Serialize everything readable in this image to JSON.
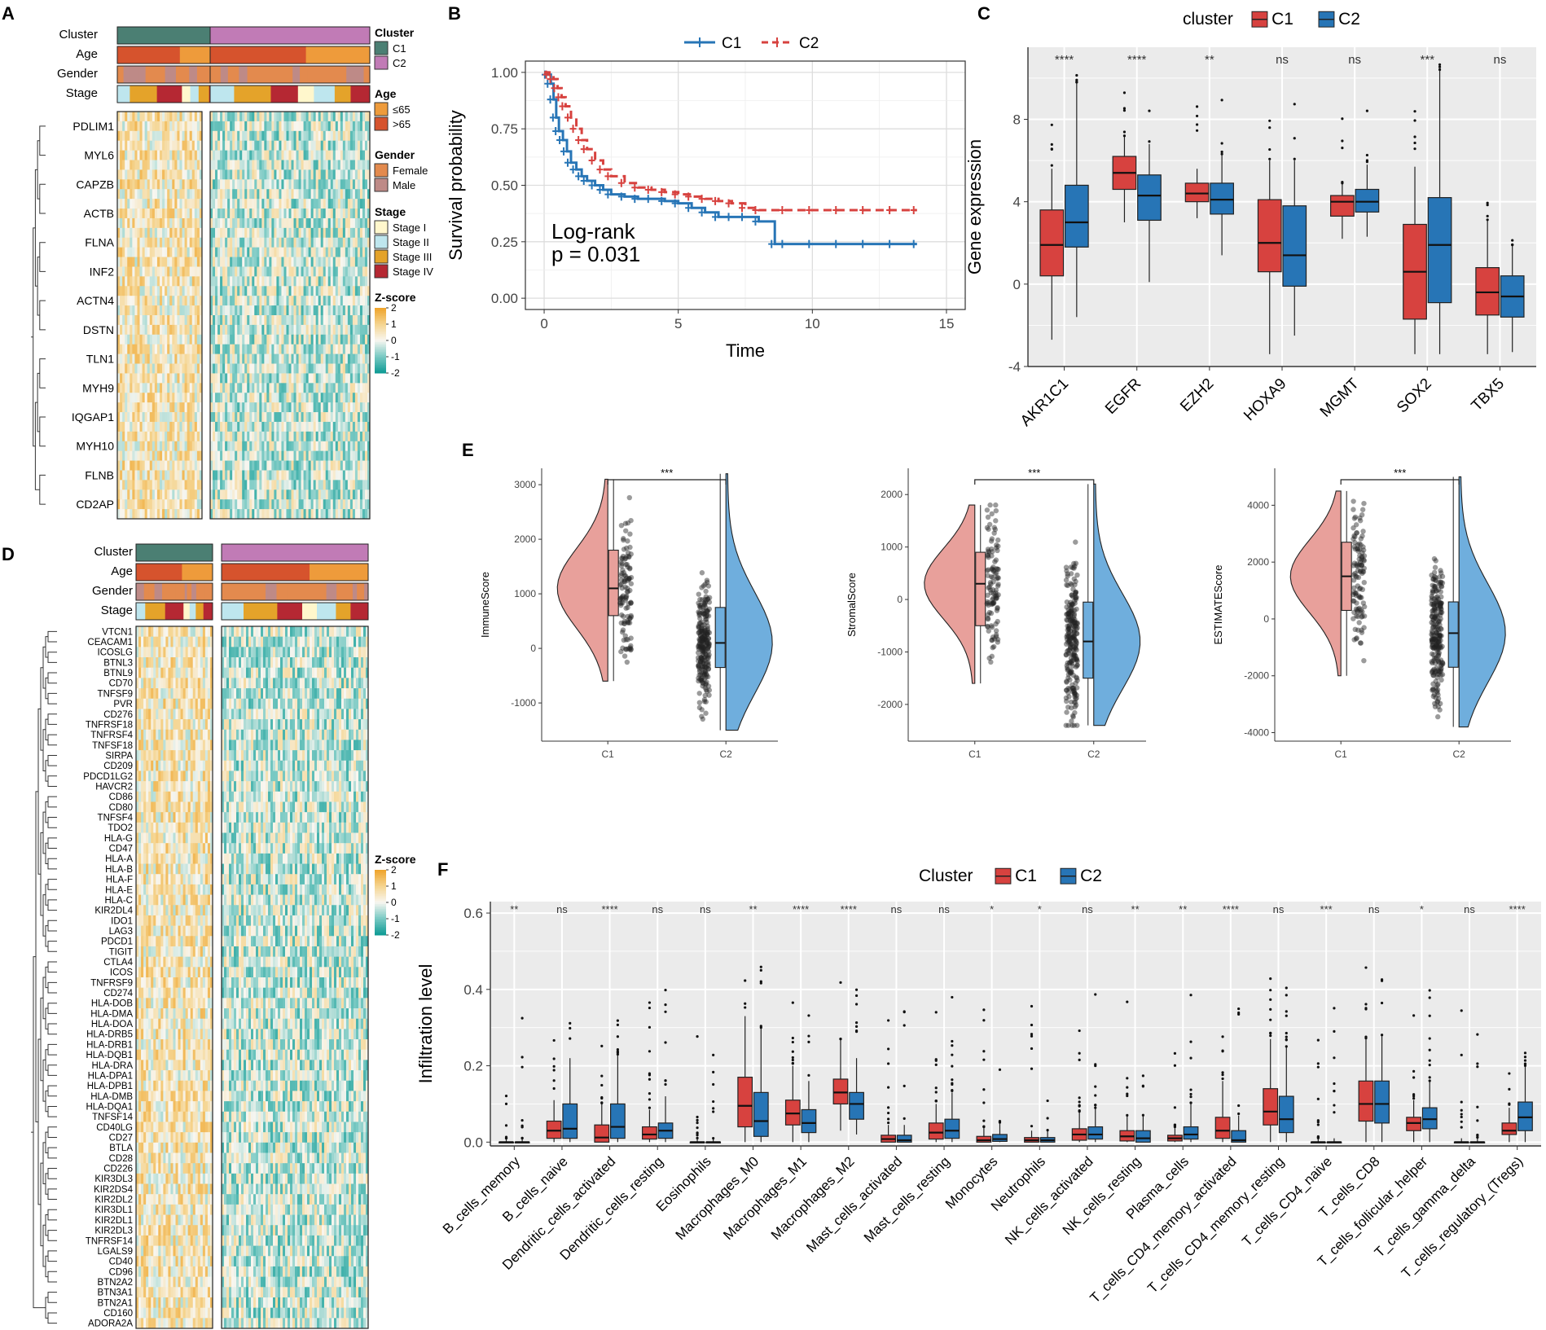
{
  "figure": {
    "panel_letters": [
      "A",
      "B",
      "C",
      "D",
      "E",
      "F"
    ],
    "colors": {
      "c1": "#D7423F",
      "c2": "#2775B6",
      "c1_light": "#E8A09B",
      "c2_light": "#6FAEDD",
      "cluster_c1": "#4B7F73",
      "cluster_c2": "#C17BB6",
      "age_le65": "#EE9B3B",
      "age_gt65": "#D6532D",
      "female": "#E38A4E",
      "male": "#BE8A87",
      "stage_i": "#FFF7CC",
      "stage_ii": "#BEE6EE",
      "stage_iii": "#E4A32A",
      "stage_iv": "#B52833",
      "panel_bg": "#EBEBEB",
      "grid": "#FFFFFF"
    }
  },
  "heatmap_a": {
    "annotation_rows": [
      "Cluster",
      "Age",
      "Gender",
      "Stage"
    ],
    "genes": [
      "PDLIM1",
      "MYL6",
      "CAPZB",
      "ACTB",
      "FLNA",
      "INF2",
      "ACTN4",
      "DSTN",
      "TLN1",
      "MYH9",
      "IQGAP1",
      "MYH10",
      "FLNB",
      "CD2AP"
    ]
  },
  "heatmap_d": {
    "annotation_rows": [
      "Cluster",
      "Age",
      "Gender",
      "Stage"
    ],
    "genes": [
      "VTCN1",
      "CEACAM1",
      "ICOSLG",
      "BTNL3",
      "BTNL9",
      "CD70",
      "TNFSF9",
      "PVR",
      "CD276",
      "TNFRSF18",
      "TNFRSF4",
      "TNFSF18",
      "SIRPA",
      "CD209",
      "PDCD1LG2",
      "HAVCR2",
      "CD86",
      "CD80",
      "TNFSF4",
      "TDO2",
      "HLA-G",
      "CD47",
      "HLA-A",
      "HLA-B",
      "HLA-F",
      "HLA-E",
      "HLA-C",
      "KIR2DL4",
      "IDO1",
      "LAG3",
      "PDCD1",
      "TIGIT",
      "CTLA4",
      "ICOS",
      "TNFRSF9",
      "CD274",
      "HLA-DOB",
      "HLA-DMA",
      "HLA-DOA",
      "HLA-DRB5",
      "HLA-DRB1",
      "HLA-DQB1",
      "HLA-DRA",
      "HLA-DPA1",
      "HLA-DPB1",
      "HLA-DMB",
      "HLA-DQA1",
      "TNFSF14",
      "CD40LG",
      "CD27",
      "BTLA",
      "CD28",
      "CD226",
      "KIR3DL3",
      "KIR2DS4",
      "KIR2DL2",
      "KIR3DL1",
      "KIR2DL1",
      "KIR2DL3",
      "TNFRSF14",
      "LGALS9",
      "CD40",
      "CD96",
      "BTN2A2",
      "BTN3A1",
      "BTN2A1",
      "CD160",
      "ADORA2A"
    ]
  },
  "legend": {
    "cluster_title": "Cluster",
    "cluster_items": [
      "C1",
      "C2"
    ],
    "age_title": "Age",
    "age_items": [
      "≤65",
      ">65"
    ],
    "gender_title": "Gender",
    "gender_items": [
      "Female",
      "Male"
    ],
    "stage_title": "Stage",
    "stage_items": [
      "Stage I",
      "Stage II",
      "Stage III",
      "Stage IV"
    ],
    "zscore_title": "Z-score",
    "zscore_ticks": [
      "2",
      "1",
      "0",
      "-1",
      "-2"
    ]
  },
  "chart_data": [
    {
      "id": "B",
      "type": "line",
      "xlabel": "Time",
      "ylabel": "Survival probability",
      "xlim": [
        -0.7,
        15.7
      ],
      "ylim": [
        -0.05,
        1.05
      ],
      "xticks": [
        "0",
        "5",
        "10",
        "15"
      ],
      "yticks": [
        "0.00",
        "0.25",
        "0.50",
        "0.75",
        "1.00"
      ],
      "annotation": [
        "Log-rank",
        "p = 0.031"
      ],
      "series": [
        {
          "name": "C1",
          "line": "solid",
          "x": [
            0,
            0.15,
            0.25,
            0.35,
            0.45,
            0.55,
            0.7,
            0.85,
            1.0,
            1.2,
            1.4,
            1.6,
            1.9,
            2.2,
            2.5,
            3.0,
            3.5,
            4.0,
            4.5,
            5.0,
            5.5,
            6.0,
            6.5,
            7.0,
            7.5,
            8.0,
            8.6,
            9.0,
            10.0,
            11.0,
            12.0,
            13.0,
            13.9
          ],
          "y": [
            1.0,
            0.99,
            0.95,
            0.88,
            0.8,
            0.74,
            0.7,
            0.65,
            0.6,
            0.57,
            0.54,
            0.52,
            0.5,
            0.48,
            0.46,
            0.45,
            0.44,
            0.44,
            0.43,
            0.42,
            0.4,
            0.38,
            0.36,
            0.36,
            0.36,
            0.34,
            0.24,
            0.24,
            0.24,
            0.24,
            0.24,
            0.24,
            0.24
          ]
        },
        {
          "name": "C2",
          "line": "dashed",
          "x": [
            0,
            0.2,
            0.35,
            0.5,
            0.65,
            0.8,
            1.0,
            1.2,
            1.4,
            1.6,
            1.9,
            2.2,
            2.5,
            3.0,
            3.5,
            4.0,
            4.5,
            5.0,
            5.5,
            6.0,
            6.5,
            7.0,
            7.5,
            8.0,
            9.0,
            10.0,
            11.0,
            12.0,
            13.0,
            13.9
          ],
          "y": [
            1.0,
            0.99,
            0.97,
            0.93,
            0.89,
            0.85,
            0.8,
            0.75,
            0.7,
            0.66,
            0.61,
            0.57,
            0.54,
            0.51,
            0.49,
            0.48,
            0.47,
            0.46,
            0.45,
            0.44,
            0.43,
            0.42,
            0.4,
            0.39,
            0.39,
            0.39,
            0.39,
            0.39,
            0.39,
            0.39
          ]
        }
      ]
    },
    {
      "id": "C",
      "type": "box",
      "xlabel": "",
      "ylabel": "Gene expression",
      "legend_title": "cluster",
      "legend_items": [
        "C1",
        "C2"
      ],
      "ylim": [
        -4,
        11.5
      ],
      "yticks": [
        "-4",
        "0",
        "4",
        "8"
      ],
      "categories": [
        "AKR1C1",
        "EGFR",
        "EZH2",
        "HOXA9",
        "MGMT",
        "SOX2",
        "TBX5"
      ],
      "significance": [
        "****",
        "****",
        "**",
        "ns",
        "ns",
        "***",
        "ns"
      ],
      "series": [
        {
          "name": "C1",
          "boxes": [
            [
              -2.7,
              0.4,
              1.9,
              3.6,
              5.6
            ],
            [
              3.0,
              4.6,
              5.4,
              6.2,
              7.2
            ],
            [
              3.2,
              4.0,
              4.4,
              4.9,
              5.6
            ],
            [
              -3.4,
              0.6,
              2.0,
              4.1,
              6.0
            ],
            [
              2.2,
              3.3,
              4.0,
              4.3,
              4.9
            ],
            [
              -3.4,
              -1.7,
              0.6,
              2.9,
              5.7
            ],
            [
              -3.4,
              -1.5,
              -0.4,
              0.8,
              3.1
            ]
          ]
        },
        {
          "name": "C2",
          "boxes": [
            [
              -1.6,
              1.8,
              3.0,
              4.8,
              9.8
            ],
            [
              0.1,
              3.1,
              4.3,
              5.3,
              6.8
            ],
            [
              1.4,
              3.4,
              4.1,
              4.9,
              6.3
            ],
            [
              -2.5,
              -0.1,
              1.4,
              3.8,
              6.0
            ],
            [
              2.3,
              3.5,
              4.0,
              4.6,
              5.8
            ],
            [
              -3.4,
              -0.9,
              1.9,
              4.2,
              10.4
            ],
            [
              -3.3,
              -1.6,
              -0.6,
              0.4,
              1.9
            ]
          ]
        }
      ]
    },
    {
      "id": "E1",
      "type": "violin",
      "ylabel": "ImmuneScore",
      "categories": [
        "C1",
        "C2"
      ],
      "ylim": [
        -1700,
        3300
      ],
      "yticks": [
        "-1000",
        "0",
        "1000",
        "2000",
        "3000"
      ],
      "significance": "***",
      "boxes": [
        [
          -600,
          600,
          1100,
          1800,
          3100
        ],
        [
          -1500,
          -350,
          100,
          750,
          3200
        ]
      ]
    },
    {
      "id": "E2",
      "type": "violin",
      "ylabel": "StromalScore",
      "categories": [
        "C1",
        "C2"
      ],
      "ylim": [
        -2700,
        2500
      ],
      "yticks": [
        "-2000",
        "-1000",
        "0",
        "1000",
        "2000"
      ],
      "significance": "***",
      "boxes": [
        [
          -1600,
          -500,
          300,
          900,
          1800
        ],
        [
          -2400,
          -1500,
          -800,
          -50,
          2200
        ]
      ]
    },
    {
      "id": "E3",
      "type": "violin",
      "ylabel": "ESTIMATEScore",
      "categories": [
        "C1",
        "C2"
      ],
      "ylim": [
        -4300,
        5300
      ],
      "yticks": [
        "-4000",
        "-2000",
        "0",
        "2000",
        "4000"
      ],
      "significance": "***",
      "boxes": [
        [
          -2000,
          300,
          1500,
          2700,
          4500
        ],
        [
          -3800,
          -1700,
          -500,
          600,
          5000
        ]
      ]
    },
    {
      "id": "F",
      "type": "box",
      "xlabel": "",
      "ylabel": "Infiltration level",
      "legend_title": "Cluster",
      "legend_items": [
        "C1",
        "C2"
      ],
      "ylim": [
        -0.01,
        0.63
      ],
      "yticks": [
        "0.0",
        "0.2",
        "0.4",
        "0.6"
      ],
      "categories": [
        "B_cells_memory",
        "B_cells_naive",
        "Dendritic_cells_activated",
        "Dendritic_cells_resting",
        "Eosinophils",
        "Macrophages_M0",
        "Macrophages_M1",
        "Macrophages_M2",
        "Mast_cells_activated",
        "Mast_cells_resting",
        "Monocytes",
        "Neutrophils",
        "NK_cells_activated",
        "NK_cells_resting",
        "Plasma_cells",
        "T_cells_CD4_memory_activated",
        "T_cells_CD4_memory_resting",
        "T_cells_CD4_naive",
        "T_cells_CD8",
        "T_cells_follicular_helper",
        "T_cells_gamma_delta",
        "T_cells_regulatory_(Tregs)"
      ],
      "significance": [
        "**",
        "ns",
        "****",
        "ns",
        "ns",
        "**",
        "****",
        "****",
        "ns",
        "ns",
        "*",
        "*",
        "ns",
        "**",
        "**",
        "****",
        "ns",
        "***",
        "ns",
        "*",
        "ns",
        "****"
      ],
      "series": [
        {
          "name": "C1",
          "boxes": [
            [
              0,
              0,
              0,
              0,
              0.01
            ],
            [
              0,
              0.01,
              0.03,
              0.055,
              0.11
            ],
            [
              0,
              0,
              0.012,
              0.045,
              0.1
            ],
            [
              0,
              0.008,
              0.02,
              0.04,
              0.085
            ],
            [
              0,
              0,
              0,
              0,
              0.01
            ],
            [
              0,
              0.04,
              0.095,
              0.17,
              0.33
            ],
            [
              0,
              0.045,
              0.075,
              0.11,
              0.2
            ],
            [
              0.03,
              0.1,
              0.13,
              0.165,
              0.27
            ],
            [
              0,
              0,
              0.008,
              0.018,
              0.045
            ],
            [
              0,
              0.008,
              0.025,
              0.05,
              0.1
            ],
            [
              0,
              0,
              0.005,
              0.015,
              0.04
            ],
            [
              0,
              0,
              0.005,
              0.012,
              0.03
            ],
            [
              0,
              0.005,
              0.02,
              0.035,
              0.08
            ],
            [
              0,
              0.003,
              0.015,
              0.03,
              0.07
            ],
            [
              0,
              0.003,
              0.01,
              0.018,
              0.04
            ],
            [
              0,
              0.01,
              0.03,
              0.065,
              0.16
            ],
            [
              0,
              0.045,
              0.08,
              0.14,
              0.27
            ],
            [
              0,
              0,
              0,
              0,
              0.01
            ],
            [
              0,
              0.055,
              0.1,
              0.16,
              0.27
            ],
            [
              0,
              0.03,
              0.05,
              0.065,
              0.11
            ],
            [
              0,
              0,
              0,
              0,
              0.01
            ],
            [
              0,
              0.02,
              0.03,
              0.05,
              0.09
            ]
          ]
        },
        {
          "name": "C2",
          "boxes": [
            [
              0,
              0,
              0,
              0,
              0.01
            ],
            [
              0,
              0.01,
              0.035,
              0.1,
              0.22
            ],
            [
              0,
              0.01,
              0.04,
              0.1,
              0.23
            ],
            [
              0,
              0.01,
              0.03,
              0.05,
              0.12
            ],
            [
              0,
              0,
              0,
              0,
              0.01
            ],
            [
              0,
              0.015,
              0.055,
              0.13,
              0.3
            ],
            [
              0,
              0.025,
              0.05,
              0.085,
              0.16
            ],
            [
              0.02,
              0.06,
              0.1,
              0.13,
              0.22
            ],
            [
              0,
              0,
              0.005,
              0.018,
              0.045
            ],
            [
              0,
              0.01,
              0.03,
              0.06,
              0.13
            ],
            [
              0,
              0.002,
              0.008,
              0.02,
              0.05
            ],
            [
              0,
              0,
              0.005,
              0.012,
              0.03
            ],
            [
              0,
              0.008,
              0.02,
              0.04,
              0.09
            ],
            [
              0,
              0,
              0.01,
              0.03,
              0.07
            ],
            [
              0,
              0.008,
              0.02,
              0.04,
              0.1
            ],
            [
              0,
              0,
              0.005,
              0.03,
              0.07
            ],
            [
              0,
              0.025,
              0.06,
              0.12,
              0.25
            ],
            [
              0,
              0,
              0,
              0,
              0.01
            ],
            [
              0,
              0.05,
              0.1,
              0.16,
              0.28
            ],
            [
              0,
              0.035,
              0.06,
              0.09,
              0.16
            ],
            [
              0,
              0,
              0,
              0,
              0.01
            ],
            [
              0,
              0.03,
              0.065,
              0.105,
              0.2
            ]
          ]
        }
      ]
    }
  ]
}
